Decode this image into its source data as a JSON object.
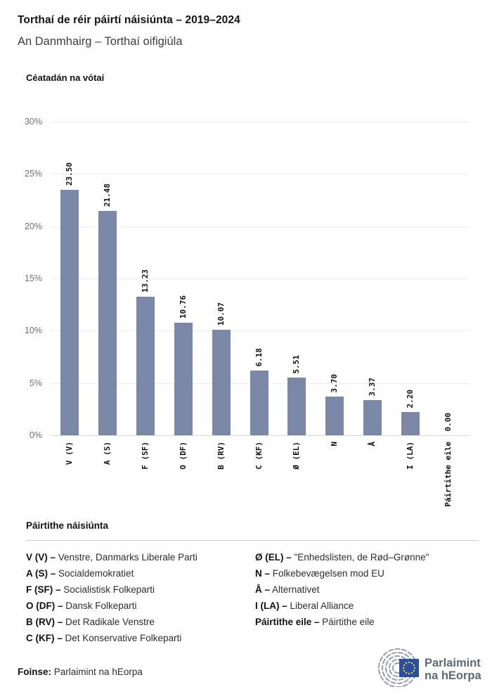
{
  "title": "Torthaí de réir páirtí náisiúnta – 2019–2024",
  "subtitle": "An Danmhairg – Torthaí oifigiúla",
  "chart_data": {
    "type": "bar",
    "title": "Céatadán na vótaí",
    "ylabel": "Céatadán na vótaí",
    "xlabel": "",
    "categories": [
      "V (V)",
      "A (S)",
      "F (SF)",
      "O (DF)",
      "B (RV)",
      "C (KF)",
      "Ø (EL)",
      "N",
      "Å",
      "I (LA)",
      "Páirtithe eile"
    ],
    "values": [
      23.5,
      21.48,
      13.23,
      10.76,
      10.07,
      6.18,
      5.51,
      3.7,
      3.37,
      2.2,
      0.0
    ],
    "value_labels": [
      "23.50",
      "21.48",
      "13.23",
      "10.76",
      "10.07",
      "6.18",
      "5.51",
      "3.70",
      "3.37",
      "2.20",
      "0.00"
    ],
    "yticks": [
      30,
      25,
      20,
      15,
      10,
      5,
      0
    ],
    "ytick_labels": [
      "30%",
      "25%",
      "20%",
      "15%",
      "10%",
      "5%",
      "0%"
    ],
    "ylim": [
      0,
      30
    ],
    "grid": true,
    "legend_position": "below",
    "bar_color": "#7b87a6"
  },
  "legend": {
    "title": "Páirtithe náisiúnta",
    "columns": [
      [
        {
          "code": "V (V) –",
          "name": "Venstre, Danmarks Liberale Parti"
        },
        {
          "code": "A (S) –",
          "name": "Socialdemokratiet"
        },
        {
          "code": "F (SF) –",
          "name": "Socialistisk Folkeparti"
        },
        {
          "code": "O (DF) –",
          "name": "Dansk Folkeparti"
        },
        {
          "code": "B (RV) –",
          "name": "Det Radikale Venstre"
        },
        {
          "code": "C (KF) –",
          "name": "Det Konservative Folkeparti"
        }
      ],
      [
        {
          "code": "Ø (EL) –",
          "name": "\"Enhedslisten, de Rød–Grønne\""
        },
        {
          "code": "N –",
          "name": "Folkebevægelsen mod EU"
        },
        {
          "code": "Å –",
          "name": "Alternativet"
        },
        {
          "code": "I (LA) –",
          "name": "Liberal Alliance"
        },
        {
          "code": "Páirtithe eile –",
          "name": "Páirtithe eile"
        }
      ]
    ]
  },
  "footer": {
    "source_label": "Foinse:",
    "source_value": "Parlaimint na hEorpa"
  },
  "logo": {
    "line1": "Parlaimint",
    "line2": "na hEorpa",
    "text_color": "#5a6b78",
    "arc_color": "#99a2aa",
    "flag_blue": "#2b4fa0",
    "star_yellow": "#ffd617"
  }
}
